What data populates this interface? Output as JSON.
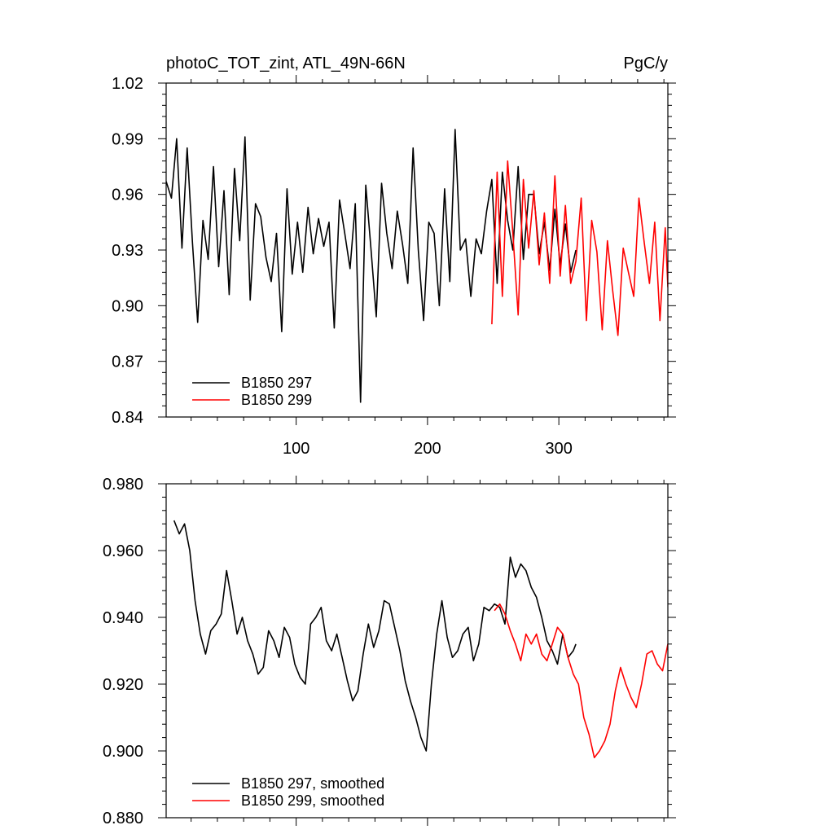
{
  "chart_data": [
    {
      "type": "line",
      "title": "photoC_TOT_zint, ATL_49N-66N",
      "units": "PgC/y",
      "xlim": [
        1,
        383
      ],
      "ylim": [
        0.84,
        1.02
      ],
      "xticks": [
        100,
        200,
        300
      ],
      "yticks": [
        0.84,
        0.87,
        0.9,
        0.93,
        0.96,
        0.99,
        1.02
      ],
      "ytick_labels": [
        "0.84",
        "0.87",
        "0.90",
        "0.93",
        "0.96",
        "0.99",
        "1.02"
      ],
      "xtick_labels": [
        "100",
        "200",
        "300"
      ],
      "legend_position": "bottom-left",
      "series": [
        {
          "name": "B1850 297",
          "color": "#000000",
          "x": [
            1,
            5,
            9,
            13,
            17,
            21,
            25,
            29,
            33,
            37,
            41,
            45,
            49,
            53,
            57,
            61,
            65,
            69,
            73,
            77,
            81,
            85,
            89,
            93,
            97,
            101,
            105,
            109,
            113,
            117,
            121,
            125,
            129,
            133,
            137,
            141,
            145,
            149,
            153,
            157,
            161,
            165,
            169,
            173,
            177,
            181,
            185,
            189,
            193,
            197,
            201,
            205,
            209,
            213,
            217,
            221,
            225,
            229,
            233,
            237,
            241,
            245,
            249,
            253,
            257,
            261,
            265,
            269,
            273,
            277,
            281,
            285,
            289,
            293,
            297,
            301,
            305,
            309,
            313
          ],
          "y": [
            0.967,
            0.958,
            0.99,
            0.931,
            0.985,
            0.934,
            0.891,
            0.946,
            0.925,
            0.975,
            0.921,
            0.962,
            0.906,
            0.974,
            0.935,
            0.991,
            0.903,
            0.955,
            0.948,
            0.926,
            0.913,
            0.939,
            0.886,
            0.963,
            0.917,
            0.945,
            0.918,
            0.953,
            0.928,
            0.947,
            0.932,
            0.945,
            0.888,
            0.957,
            0.939,
            0.92,
            0.955,
            0.848,
            0.965,
            0.93,
            0.894,
            0.966,
            0.939,
            0.92,
            0.951,
            0.933,
            0.912,
            0.985,
            0.93,
            0.892,
            0.945,
            0.939,
            0.9,
            0.963,
            0.913,
            0.995,
            0.93,
            0.936,
            0.905,
            0.936,
            0.928,
            0.951,
            0.968,
            0.912,
            0.972,
            0.946,
            0.93,
            0.975,
            0.925,
            0.96,
            0.96,
            0.928,
            0.945,
            0.919,
            0.952,
            0.922,
            0.944,
            0.918,
            0.93
          ]
        },
        {
          "name": "B1850 299",
          "color": "#ff0000",
          "x": [
            249,
            253,
            257,
            261,
            265,
            269,
            273,
            277,
            281,
            285,
            289,
            293,
            297,
            301,
            305,
            309,
            313,
            317,
            321,
            325,
            329,
            333,
            337,
            341,
            345,
            349,
            353,
            357,
            361,
            365,
            369,
            373,
            377,
            381,
            383
          ],
          "y": [
            0.89,
            0.972,
            0.905,
            0.978,
            0.939,
            0.895,
            0.968,
            0.931,
            0.962,
            0.922,
            0.95,
            0.912,
            0.97,
            0.916,
            0.954,
            0.912,
            0.924,
            0.958,
            0.892,
            0.946,
            0.929,
            0.887,
            0.935,
            0.908,
            0.884,
            0.931,
            0.918,
            0.905,
            0.958,
            0.934,
            0.912,
            0.945,
            0.892,
            0.942,
            0.91
          ]
        }
      ]
    },
    {
      "type": "line",
      "xlim": [
        1,
        383
      ],
      "ylim": [
        0.88,
        0.98
      ],
      "xticks": [
        100,
        200,
        300
      ],
      "yticks": [
        0.88,
        0.9,
        0.92,
        0.94,
        0.96,
        0.98
      ],
      "ytick_labels": [
        "0.880",
        "0.900",
        "0.920",
        "0.940",
        "0.960",
        "0.980"
      ],
      "legend_position": "bottom-left",
      "series": [
        {
          "name": "B1850 297, smoothed",
          "color": "#000000",
          "x": [
            7,
            11,
            15,
            19,
            23,
            27,
            31,
            35,
            39,
            43,
            47,
            51,
            55,
            59,
            63,
            67,
            71,
            75,
            79,
            83,
            87,
            91,
            95,
            99,
            103,
            107,
            111,
            115,
            119,
            123,
            127,
            131,
            135,
            139,
            143,
            147,
            151,
            155,
            159,
            163,
            167,
            171,
            175,
            179,
            183,
            187,
            191,
            195,
            199,
            203,
            207,
            211,
            215,
            219,
            223,
            227,
            231,
            235,
            239,
            243,
            247,
            251,
            255,
            259,
            263,
            267,
            271,
            275,
            279,
            283,
            287,
            291,
            295,
            299,
            303,
            307,
            311,
            313
          ],
          "y": [
            0.969,
            0.965,
            0.968,
            0.96,
            0.945,
            0.935,
            0.929,
            0.936,
            0.938,
            0.941,
            0.954,
            0.945,
            0.935,
            0.94,
            0.933,
            0.929,
            0.923,
            0.925,
            0.936,
            0.933,
            0.928,
            0.937,
            0.934,
            0.926,
            0.922,
            0.92,
            0.938,
            0.94,
            0.943,
            0.933,
            0.93,
            0.935,
            0.928,
            0.921,
            0.915,
            0.918,
            0.929,
            0.938,
            0.931,
            0.936,
            0.945,
            0.944,
            0.937,
            0.93,
            0.921,
            0.915,
            0.91,
            0.904,
            0.9,
            0.92,
            0.935,
            0.945,
            0.934,
            0.928,
            0.93,
            0.935,
            0.937,
            0.927,
            0.932,
            0.943,
            0.942,
            0.944,
            0.943,
            0.938,
            0.958,
            0.952,
            0.956,
            0.954,
            0.949,
            0.946,
            0.94,
            0.933,
            0.93,
            0.926,
            0.935,
            0.928,
            0.93,
            0.932
          ]
        },
        {
          "name": "B1850 299, smoothed",
          "color": "#ff0000",
          "x": [
            251,
            255,
            259,
            263,
            267,
            271,
            275,
            279,
            283,
            287,
            291,
            295,
            299,
            303,
            307,
            311,
            315,
            319,
            323,
            327,
            331,
            335,
            339,
            343,
            347,
            351,
            355,
            359,
            363,
            367,
            371,
            375,
            379,
            383
          ],
          "y": [
            0.942,
            0.944,
            0.941,
            0.936,
            0.932,
            0.927,
            0.935,
            0.932,
            0.935,
            0.929,
            0.927,
            0.932,
            0.937,
            0.935,
            0.928,
            0.923,
            0.92,
            0.91,
            0.905,
            0.898,
            0.9,
            0.903,
            0.908,
            0.918,
            0.925,
            0.92,
            0.916,
            0.913,
            0.92,
            0.929,
            0.93,
            0.926,
            0.924,
            0.932
          ]
        }
      ]
    }
  ]
}
